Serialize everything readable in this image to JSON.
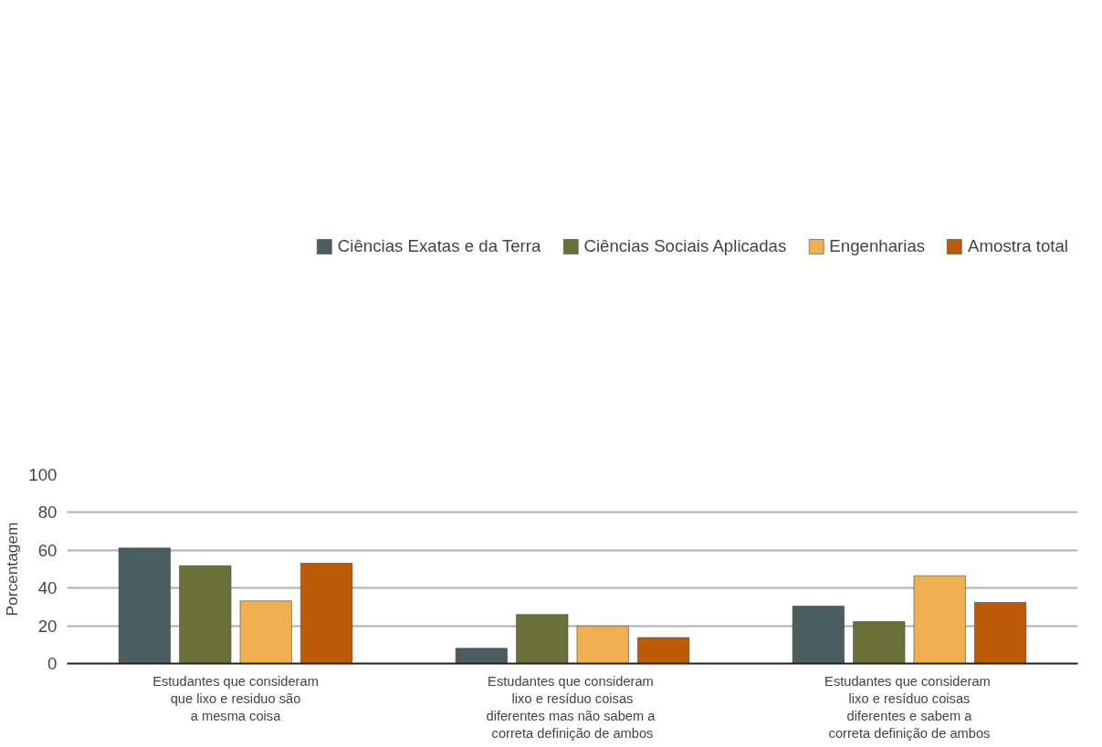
{
  "chart_data": {
    "type": "bar",
    "ylabel": "Porcentagem",
    "categories": [
      "Estudantes que consideram\nque lixo e residuo são\na mesma coisa",
      "Estudantes que  consideram\nlixo e resíduo coisas\ndiferentes mas não  sabem a\ncorreta definição de ambos",
      "Estudantes que  consideram\nlixo e resíduo coisas\ndiferentes e sabem a\ncorreta definição de ambos"
    ],
    "series": [
      {
        "name": "Ciências Exatas e da Terra",
        "color": "#4a5d60",
        "values": [
          61.2,
          8.1,
          30.4
        ]
      },
      {
        "name": "Ciências Sociais Aplicadas",
        "color": "#6b6f38",
        "values": [
          51.8,
          26,
          22.2
        ]
      },
      {
        "name": "Engenharias",
        "color": "#f0b050",
        "values": [
          33.2,
          19.9,
          46.5
        ]
      },
      {
        "name": "Amostra total",
        "color": "#bc5a08",
        "values": [
          53.1,
          13.8,
          32.4
        ]
      }
    ],
    "ylim": [
      0,
      100
    ],
    "yticks": [
      0,
      20,
      40,
      60,
      80,
      100
    ],
    "grid": "y",
    "legend": "top"
  }
}
